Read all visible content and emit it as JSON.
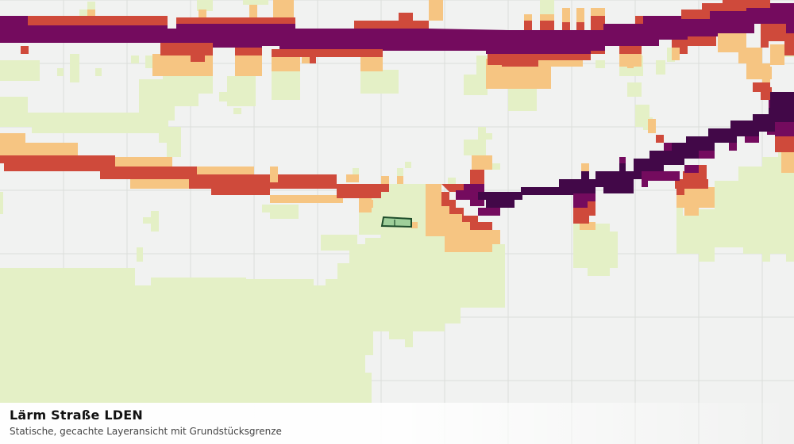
{
  "map": {
    "layer_title": "Lärm Straße LDEN",
    "layer_subtitle": "Statische, gecachte Layeransicht mit Grundstücksgrenze",
    "legend_colors": {
      "class_1": "#e4f0c6",
      "class_2": "#f6c582",
      "class_3": "#cf4a3b",
      "class_4": "#740b5e",
      "class_5": "#420848"
    },
    "background_color": "#f1f2f1",
    "grid_color": "#dcdedb",
    "parcel_fill": "#9fcf9a",
    "parcel_stroke": "#1e4d2b"
  }
}
